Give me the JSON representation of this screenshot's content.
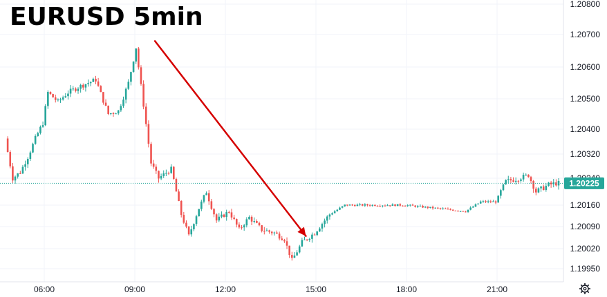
{
  "chart_data": {
    "type": "candlestick",
    "title": "EURUSD 5min",
    "x_ticks": [
      "06:00",
      "09:00",
      "12:00",
      "15:00",
      "18:00",
      "21:00"
    ],
    "y_ticks": [
      "1.20800",
      "1.20700",
      "1.20600",
      "1.20500",
      "1.20400",
      "1.20320",
      "1.20240",
      "1.20160",
      "1.20090",
      "1.20020",
      "1.19950"
    ],
    "last_price": "1.20225",
    "grid": true,
    "colors": {
      "up": "#26a69a",
      "down": "#ef5350",
      "arrow": "#d50000",
      "price_tag": "#26a69a",
      "price_line": "#26a69a"
    },
    "settings_icon": "gear-icon",
    "arrow": {
      "from": {
        "time": "09:40",
        "price": 1.2068
      },
      "to": {
        "time": "14:40",
        "price": 1.2006
      }
    },
    "price_path": [
      [
        "04:45",
        1.2037
      ],
      [
        "05:00",
        1.2024
      ],
      [
        "05:15",
        1.2026
      ],
      [
        "05:30",
        1.2031
      ],
      [
        "05:45",
        1.2037
      ],
      [
        "06:00",
        1.2042
      ],
      [
        "06:10",
        1.2052
      ],
      [
        "06:30",
        1.2049
      ],
      [
        "06:50",
        1.2052
      ],
      [
        "07:15",
        1.2054
      ],
      [
        "07:45",
        1.2056
      ],
      [
        "08:10",
        1.2045
      ],
      [
        "08:30",
        1.2046
      ],
      [
        "08:50",
        1.2055
      ],
      [
        "09:05",
        1.2066
      ],
      [
        "09:20",
        1.2048
      ],
      [
        "09:35",
        1.2029
      ],
      [
        "09:50",
        1.2024
      ],
      [
        "10:15",
        1.2027
      ],
      [
        "10:35",
        1.2013
      ],
      [
        "10:50",
        1.2006
      ],
      [
        "11:10",
        1.2015
      ],
      [
        "11:25",
        1.202
      ],
      [
        "11:45",
        1.2011
      ],
      [
        "12:10",
        1.2014
      ],
      [
        "12:30",
        1.2008
      ],
      [
        "12:50",
        1.2012
      ],
      [
        "13:15",
        1.2008
      ],
      [
        "13:40",
        1.2007
      ],
      [
        "14:00",
        1.2005
      ],
      [
        "14:15",
        1.1998
      ],
      [
        "14:35",
        1.2004
      ],
      [
        "15:00",
        1.2007
      ],
      [
        "15:30",
        1.2013
      ],
      [
        "16:00",
        1.2016
      ],
      [
        "17:00",
        1.2016
      ],
      [
        "18:00",
        1.2016
      ],
      [
        "19:00",
        1.2015
      ],
      [
        "20:00",
        1.2014
      ],
      [
        "20:30",
        1.2017
      ],
      [
        "21:00",
        1.2017
      ],
      [
        "21:20",
        1.2023
      ],
      [
        "21:45",
        1.2024
      ],
      [
        "22:05",
        1.2025
      ],
      [
        "22:20",
        1.202
      ],
      [
        "22:45",
        1.2022
      ],
      [
        "23:00",
        1.20225
      ]
    ]
  }
}
